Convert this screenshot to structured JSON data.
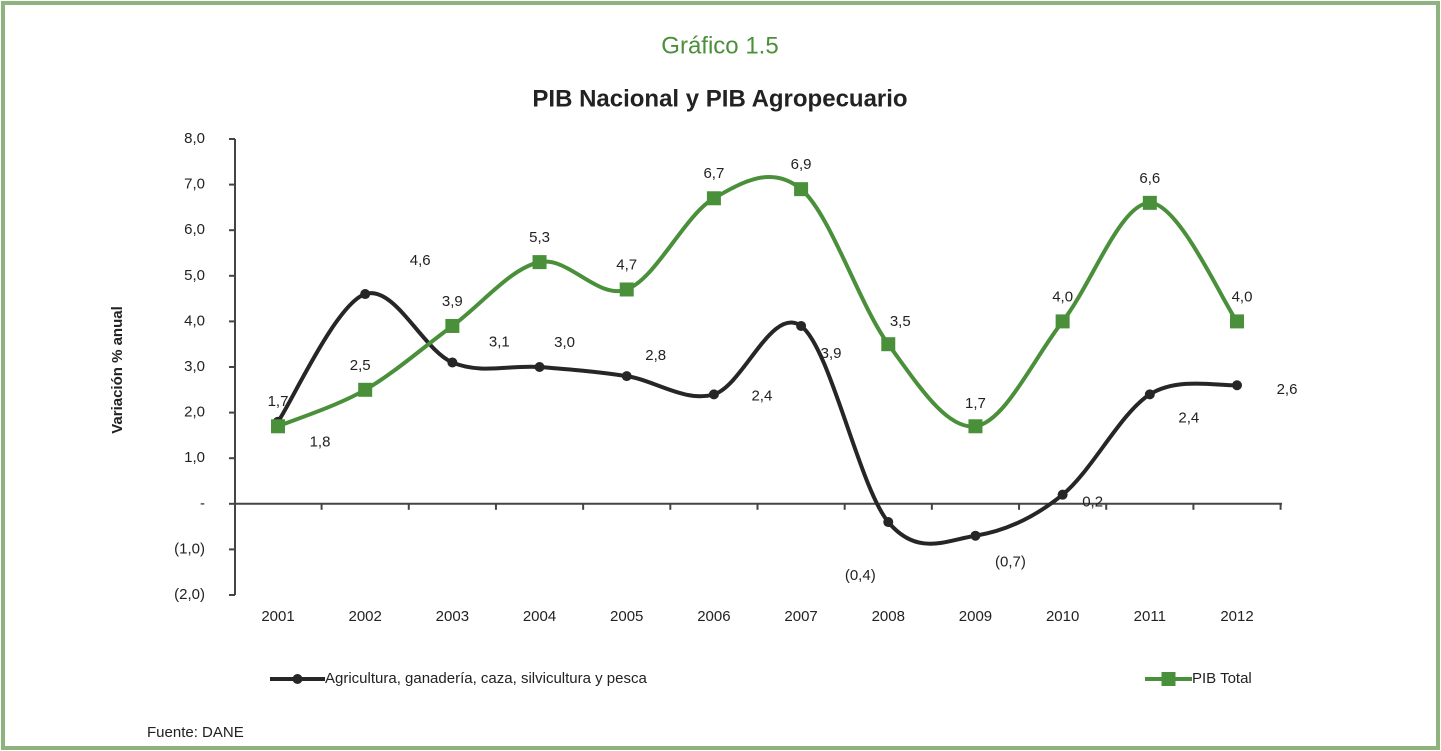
{
  "chart_data": {
    "type": "line",
    "title": "Gráfico 1.5",
    "subtitle": "PIB Nacional y PIB Agropecuario",
    "y_label": "Variación % anual",
    "source": "Fuente: DANE",
    "categories": [
      "2001",
      "2002",
      "2003",
      "2004",
      "2005",
      "2006",
      "2007",
      "2008",
      "2009",
      "2010",
      "2011",
      "2012"
    ],
    "series": [
      {
        "name": "Agricultura, ganadería, caza, silvicultura y pesca",
        "color": "#262626",
        "values": [
          1.8,
          4.6,
          3.1,
          3.0,
          2.8,
          2.4,
          3.9,
          -0.4,
          -0.7,
          0.2,
          2.4,
          2.6
        ],
        "value_labels": [
          "1,8",
          "4,6",
          "3,1",
          "3,0",
          "2,8",
          "2,4",
          "3,9",
          "(0,4)",
          "(0,7)",
          "0,2",
          "2,4",
          "2,6"
        ]
      },
      {
        "name": "PIB Total",
        "color": "#4a8f3a",
        "values": [
          1.7,
          2.5,
          3.9,
          5.3,
          4.7,
          6.7,
          6.9,
          3.5,
          1.7,
          4.0,
          6.6,
          4.0
        ],
        "value_labels": [
          "1,7",
          "2,5",
          "3,9",
          "5,3",
          "4,7",
          "6,7",
          "6,9",
          "3,5",
          "1,7",
          "4,0",
          "6,6",
          "4,0"
        ]
      }
    ],
    "ylim": [
      -2,
      8
    ],
    "yticks": [
      {
        "value": -2,
        "label": "(2,0)"
      },
      {
        "value": -1,
        "label": "(1,0)"
      },
      {
        "value": 0,
        "label": "-"
      },
      {
        "value": 1,
        "label": "1,0"
      },
      {
        "value": 2,
        "label": "2,0"
      },
      {
        "value": 3,
        "label": "3,0"
      },
      {
        "value": 4,
        "label": "4,0"
      },
      {
        "value": 5,
        "label": "5,0"
      },
      {
        "value": 6,
        "label": "6,0"
      },
      {
        "value": 7,
        "label": "7,0"
      },
      {
        "value": 8,
        "label": "8,0"
      }
    ],
    "smooth": true,
    "legend": "bottom"
  }
}
